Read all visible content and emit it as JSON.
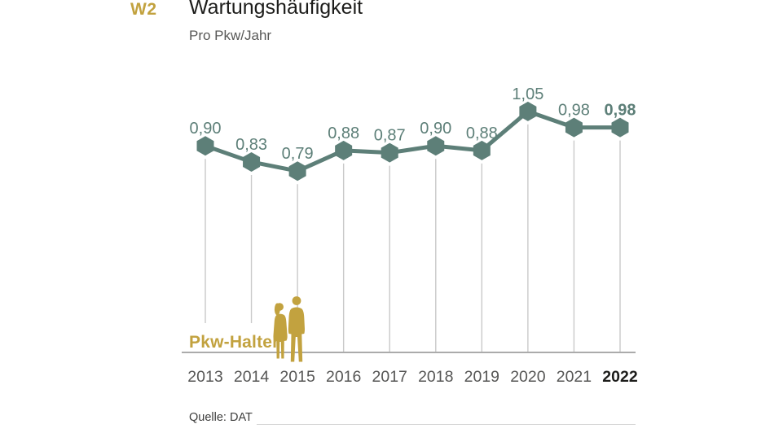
{
  "header": {
    "tag": "W2",
    "title": "Wartungshäufigkeit",
    "subtitle": "Pro Pkw/Jahr"
  },
  "footer": {
    "source": "Quelle: DAT"
  },
  "colors": {
    "accent_gold": "#c2a23f",
    "series_teal": "#5d7f78",
    "axis_text": "#565655",
    "axis_text_emphasis": "#1d1d1b",
    "baseline": "#ababab",
    "drop_line": "#c9c9c9"
  },
  "chart_data": {
    "type": "line",
    "title": "Wartungshäufigkeit",
    "subtitle": "Pro Pkw/Jahr",
    "series_label": "Pkw-Halter",
    "categories": [
      "2013",
      "2014",
      "2015",
      "2016",
      "2017",
      "2018",
      "2019",
      "2020",
      "2021",
      "2022"
    ],
    "values": [
      0.9,
      0.83,
      0.79,
      0.88,
      0.87,
      0.9,
      0.88,
      1.05,
      0.98,
      0.98
    ],
    "value_labels": [
      "0,90",
      "0,83",
      "0,79",
      "0,88",
      "0,87",
      "0,90",
      "0,88",
      "1,05",
      "0,98",
      "0,98"
    ],
    "emphasized_category_index": 9,
    "marker": "hexagon",
    "xlabel": "",
    "ylabel": "",
    "ylim": [
      0,
      1.2
    ],
    "grid": false,
    "legend_position": "none",
    "source": "Quelle: DAT"
  }
}
